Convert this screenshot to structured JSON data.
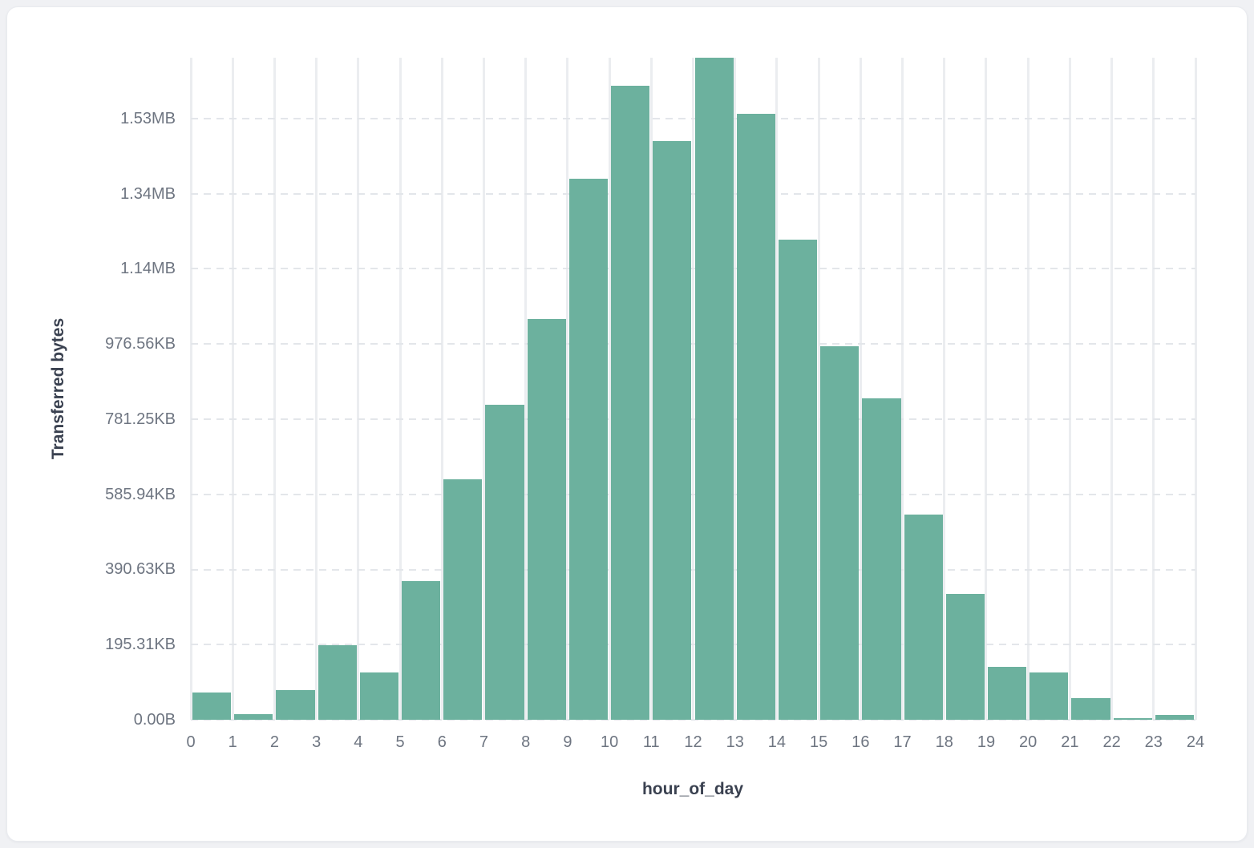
{
  "page": {
    "background_color": "#f0f1f4",
    "card_background_color": "#ffffff",
    "card_border_color": "#e9ebef"
  },
  "chart_data": {
    "type": "bar",
    "subtype": "histogram",
    "title": "",
    "xlabel": "hour_of_day",
    "ylabel": "Transferred bytes",
    "x": [
      0,
      1,
      2,
      3,
      4,
      5,
      6,
      7,
      8,
      9,
      10,
      11,
      12,
      13,
      14,
      15,
      16,
      17,
      18,
      19,
      20,
      21,
      22,
      23
    ],
    "values_bytes": [
      72000,
      16000,
      78000,
      198000,
      125000,
      370000,
      641000,
      838000,
      1067000,
      1440000,
      1687000,
      1541000,
      1762000,
      1612000,
      1278000,
      995000,
      855000,
      547000,
      335000,
      140000,
      125000,
      58000,
      3600,
      13000
    ],
    "x_tick_labels": [
      "0",
      "1",
      "2",
      "3",
      "4",
      "5",
      "6",
      "7",
      "8",
      "9",
      "10",
      "11",
      "12",
      "13",
      "14",
      "15",
      "16",
      "17",
      "18",
      "19",
      "20",
      "21",
      "22",
      "23",
      "24"
    ],
    "y_ticks": [
      {
        "bytes": 0,
        "label": "0.00B"
      },
      {
        "bytes": 200000,
        "label": "195.31KB"
      },
      {
        "bytes": 400000,
        "label": "390.63KB"
      },
      {
        "bytes": 600000,
        "label": "585.94KB"
      },
      {
        "bytes": 800000,
        "label": "781.25KB"
      },
      {
        "bytes": 1000000,
        "label": "976.56KB"
      },
      {
        "bytes": 1200000,
        "label": "1.14MB"
      },
      {
        "bytes": 1400000,
        "label": "1.34MB"
      },
      {
        "bytes": 1600000,
        "label": "1.53MB"
      }
    ],
    "ylim": [
      0,
      1762000
    ],
    "grid": true,
    "legend": "none",
    "colors": {
      "bar_fill": "#6cb19e",
      "bar_stroke": "#ffffff",
      "vertical_gridline": "#ebedf0",
      "horizontal_gridline": "#e3e6ea",
      "tick_label": "#6e7581",
      "axis_title": "#3a4150"
    }
  }
}
